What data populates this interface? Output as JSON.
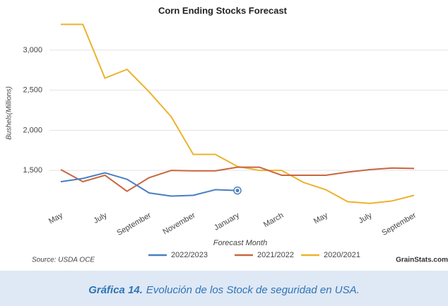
{
  "chart_data": {
    "type": "line",
    "title": "Corn Ending Stocks Forecast",
    "x_label": "Forecast Month",
    "y_label": "Bushels(Millions)",
    "categories": [
      "May",
      null,
      "July",
      null,
      "September",
      null,
      "November",
      null,
      "January",
      null,
      "March",
      null,
      "May",
      null,
      "July",
      null,
      "September"
    ],
    "series": [
      {
        "name": "2022/2023",
        "color": "#4a7fc1",
        "values": [
          1360,
          1400,
          1470,
          1390,
          1220,
          1180,
          1190,
          1260,
          1250,
          null,
          null,
          null,
          null,
          null,
          null,
          null,
          null
        ]
      },
      {
        "name": "2021/2022",
        "color": "#c9663f",
        "values": [
          1510,
          1360,
          1440,
          1240,
          1410,
          1500,
          1495,
          1495,
          1540,
          1540,
          1440,
          1440,
          1440,
          1480,
          1510,
          1530,
          1525
        ]
      },
      {
        "name": "2020/2021",
        "color": "#ecb22e",
        "values": [
          3320,
          3320,
          2650,
          2760,
          2480,
          2170,
          1700,
          1700,
          1550,
          1500,
          1500,
          1350,
          1260,
          1110,
          1090,
          1120,
          1190
        ]
      }
    ],
    "ylim": [
      1070,
      3360
    ],
    "yticks": [
      {
        "value": 1500,
        "label": "1,500"
      },
      {
        "value": 2000,
        "label": "2,000"
      },
      {
        "value": 2500,
        "label": "2,500"
      },
      {
        "value": 3000,
        "label": "3,000"
      }
    ],
    "grid": true,
    "source": "Source: USDA OCE",
    "credit": "GrainStats.com"
  },
  "caption": {
    "label": "Gráfica 14.",
    "text": "Evolución de los Stock de seguridad en USA."
  }
}
